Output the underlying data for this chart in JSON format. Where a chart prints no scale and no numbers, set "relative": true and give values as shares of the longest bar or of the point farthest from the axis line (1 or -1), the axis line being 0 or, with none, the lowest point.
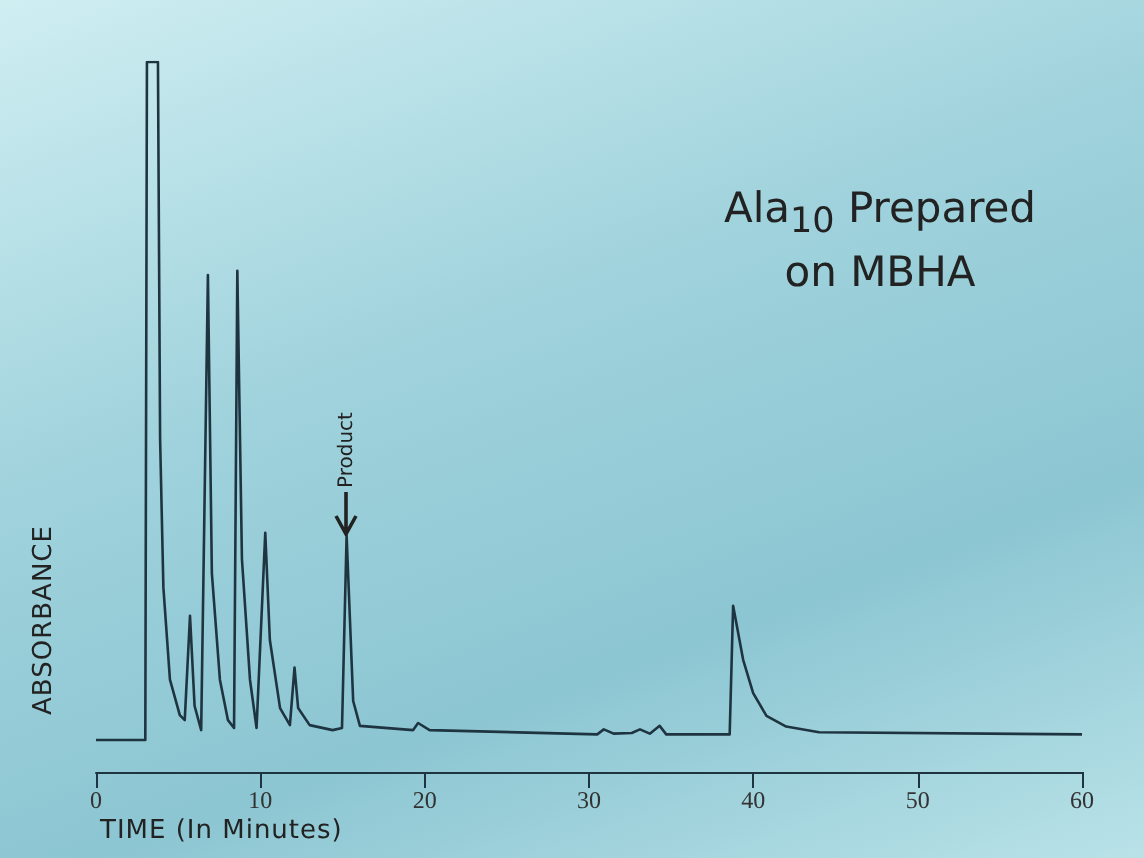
{
  "chart_data": {
    "type": "line",
    "relative": true,
    "title": "Ala$_{10}$ Prepared\non MBHA",
    "xlabel": "TIME (In Minutes)",
    "ylabel": "ABSORBANCE",
    "xlim": [
      0,
      60
    ],
    "xticks": [
      0,
      10,
      20,
      30,
      40,
      50,
      60
    ],
    "marker": "none",
    "annotations": [
      {
        "text": "Product",
        "x": 15.25,
        "y": 0.333
      }
    ],
    "series": [
      {
        "color": "#1f3441",
        "x": [
          0,
          3.0,
          3.1,
          3.77,
          3.9,
          4.1,
          4.5,
          5.1,
          5.4,
          5.72,
          6.0,
          6.4,
          6.81,
          7.05,
          7.54,
          8.03,
          8.4,
          8.6,
          8.88,
          9.37,
          9.77,
          10.3,
          10.58,
          11.2,
          11.8,
          12.08,
          12.3,
          13.0,
          14.4,
          14.97,
          15.25,
          15.65,
          16.06,
          19.3,
          19.6,
          20.3,
          30.5,
          30.9,
          31.5,
          32.6,
          33.1,
          33.7,
          34.3,
          34.7,
          38.56,
          38.77,
          39.38,
          39.99,
          40.8,
          42.0,
          44.0,
          60
        ],
        "values": [
          0.045,
          0.045,
          1.0,
          1.0,
          0.47,
          0.26,
          0.13,
          0.08,
          0.073,
          0.22,
          0.093,
          0.059,
          0.7,
          0.28,
          0.13,
          0.073,
          0.062,
          0.706,
          0.3,
          0.13,
          0.062,
          0.337,
          0.186,
          0.09,
          0.066,
          0.147,
          0.09,
          0.066,
          0.059,
          0.062,
          0.333,
          0.1,
          0.065,
          0.059,
          0.069,
          0.059,
          0.053,
          0.06,
          0.054,
          0.055,
          0.06,
          0.054,
          0.065,
          0.053,
          0.053,
          0.234,
          0.158,
          0.111,
          0.079,
          0.064,
          0.056,
          0.053
        ]
      }
    ]
  }
}
